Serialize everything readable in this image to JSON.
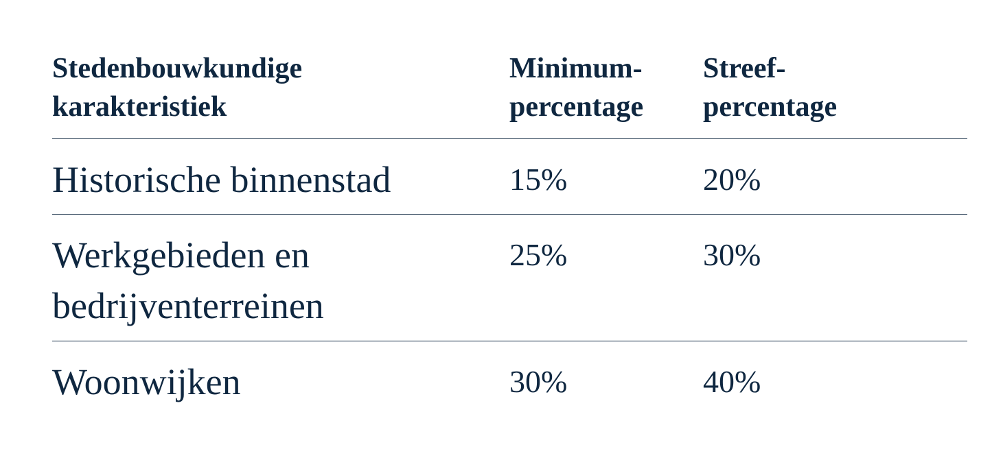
{
  "table": {
    "headers": [
      "Stedenbouwkundige\nkarakteristiek",
      "Minimum-\npercentage",
      "Streef-\npercentage"
    ],
    "rows": [
      {
        "karakteristiek": "Historische binnenstad",
        "minimum": "15%",
        "streef": "20%"
      },
      {
        "karakteristiek": "Werkgebieden en\nbedrijventerreinen",
        "minimum": "25%",
        "streef": "30%"
      },
      {
        "karakteristiek": "Woonwijken",
        "minimum": "30%",
        "streef": "40%"
      }
    ]
  },
  "colors": {
    "text": "#0f2740",
    "rule": "#0f2740",
    "background": "#ffffff"
  }
}
